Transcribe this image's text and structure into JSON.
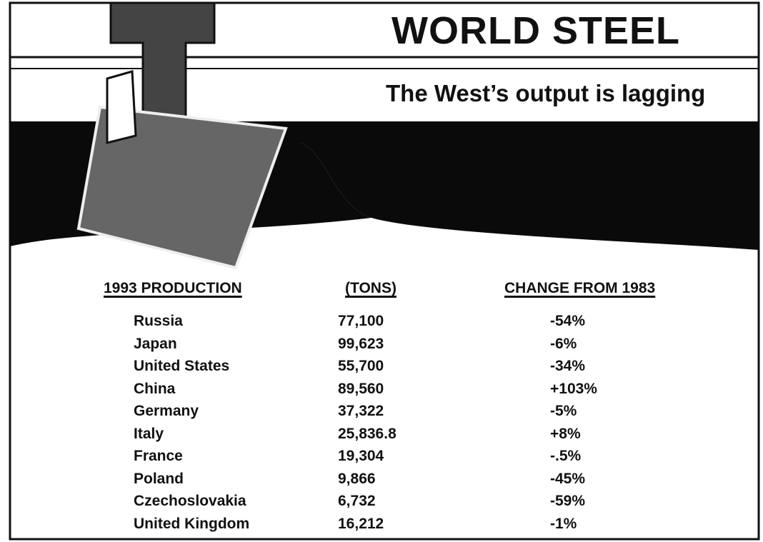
{
  "header": {
    "title": "WORLD STEEL",
    "subtitle": "The West’s output is lagging"
  },
  "table": {
    "columns": [
      "1993 PRODUCTION",
      "(TONS)",
      "CHANGE FROM 1983"
    ],
    "rows": [
      [
        "Russia",
        "77,100",
        "-54%"
      ],
      [
        "Japan",
        "99,623",
        "-6%"
      ],
      [
        "United States",
        "55,700",
        "-34%"
      ],
      [
        "China",
        "89,560",
        "+103%"
      ],
      [
        "Germany",
        "37,322",
        "-5%"
      ],
      [
        "Italy",
        "25,836.8",
        "+8%"
      ],
      [
        "France",
        "19,304",
        "-.5%"
      ],
      [
        "Poland",
        "9,866",
        "-45%"
      ],
      [
        "Czechoslovakia",
        "6,732",
        "-59%"
      ],
      [
        "United Kingdom",
        "16,212",
        "-1%"
      ]
    ]
  }
}
